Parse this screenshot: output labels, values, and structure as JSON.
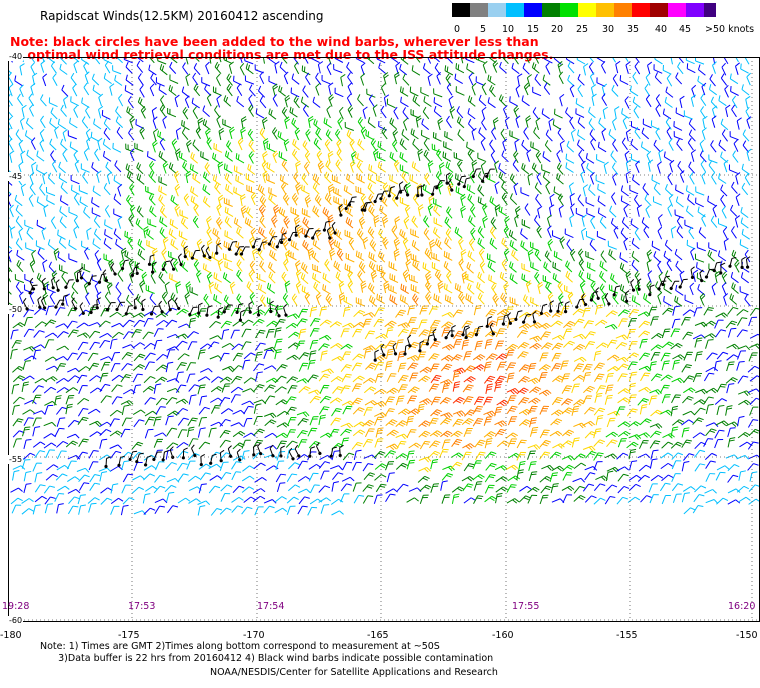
{
  "title": "Rapidscat Winds(12.5KM) 20160412 ascending",
  "note_line1": "Note: black circles have been added to the wind barbs, wherever less than",
  "note_line2": "optimal wind retrieval conditions are met due to the ISS attitude changes.",
  "legend": {
    "labels": [
      "0",
      "5",
      "10",
      "15",
      "20",
      "25",
      "30",
      "35",
      "40",
      "45",
      ">50 knots"
    ],
    "colors": [
      "#000000",
      "#808080",
      "#00bfff",
      "#0000ff",
      "#008000",
      "#00e000",
      "#ffff00",
      "#ffc000",
      "#ff8000",
      "#ff0000",
      "#a00000",
      "#ff00ff",
      "#8000ff",
      "#400080"
    ]
  },
  "lat_labels": [
    "-40",
    "-45",
    "-50",
    "-55",
    "-60"
  ],
  "lon_labels": [
    "-180",
    "-175",
    "-170",
    "-165",
    "-160",
    "-155",
    "-150"
  ],
  "time_labels": [
    "19:28",
    "17:53",
    "17:54",
    "17:55",
    "16:20"
  ],
  "footer_note_line1": "Note: 1) Times are GMT 2)Times along bottom correspond to measurement at ~50S",
  "footer_note_line2": "3)Data buffer is 22 hrs from 20160412 4) Black wind barbs indicate possible contamination",
  "footer_credit": "NOAA/NESDIS/Center for Satellite Applications and Research",
  "map_extent": {
    "lon": [
      -180,
      -150
    ],
    "lat": [
      -60,
      -40
    ]
  },
  "grid": true
}
